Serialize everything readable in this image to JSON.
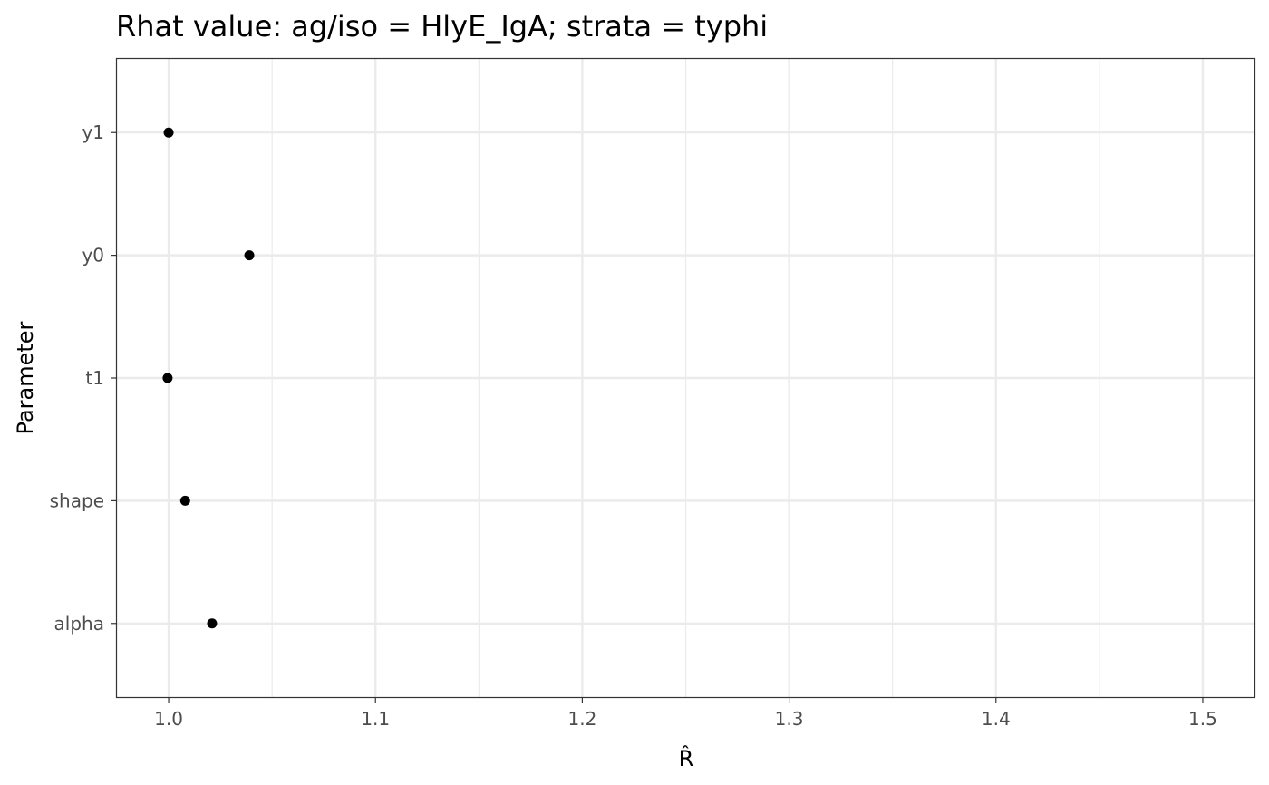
{
  "chart_data": {
    "type": "scatter",
    "title": "Rhat value: ag/iso = HlyE_IgA; strata =  typhi",
    "xlabel": "R̂",
    "ylabel": "Parameter",
    "xlim": [
      0.975,
      1.525
    ],
    "x_ticks": [
      "1.0",
      "1.1",
      "1.2",
      "1.3",
      "1.4",
      "1.5"
    ],
    "x_tick_values": [
      1.0,
      1.1,
      1.2,
      1.3,
      1.4,
      1.5
    ],
    "categories": [
      "y1",
      "y0",
      "t1",
      "shape",
      "alpha"
    ],
    "values": [
      1.0,
      1.039,
      0.9995,
      1.008,
      1.021
    ],
    "grid": true,
    "point_color": "#000000",
    "grid_color": "#ebebeb",
    "panel_border_color": "#333333"
  }
}
